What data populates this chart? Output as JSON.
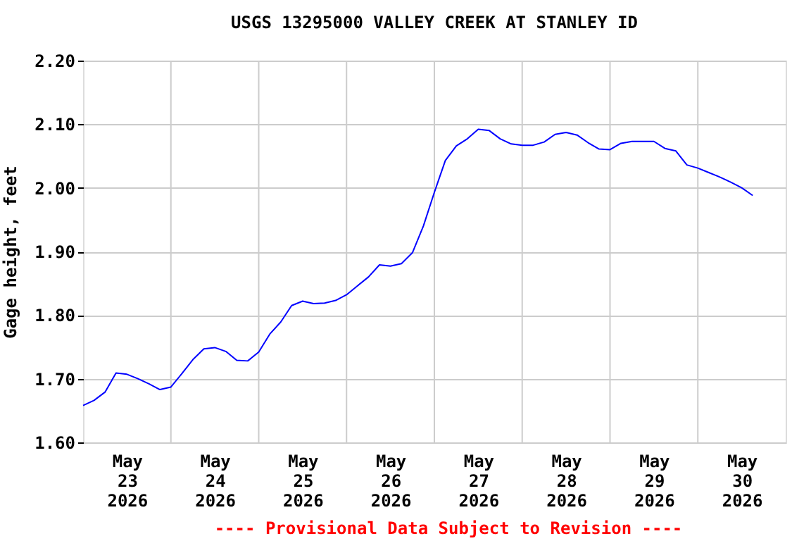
{
  "chart_data": {
    "type": "line",
    "title": "USGS 13295000 VALLEY CREEK AT STANLEY ID",
    "ylabel": "Gage height, feet",
    "annotations": [
      "---- Provisional Data Subject to Revision ----"
    ],
    "x": [
      "2026-05-23T00:00",
      "2026-05-23T03:00",
      "2026-05-23T06:00",
      "2026-05-23T09:00",
      "2026-05-23T12:00",
      "2026-05-23T15:00",
      "2026-05-23T18:00",
      "2026-05-23T21:00",
      "2026-05-24T00:00",
      "2026-05-24T03:00",
      "2026-05-24T06:00",
      "2026-05-24T09:00",
      "2026-05-24T12:00",
      "2026-05-24T15:00",
      "2026-05-24T18:00",
      "2026-05-24T21:00",
      "2026-05-25T00:00",
      "2026-05-25T03:00",
      "2026-05-25T06:00",
      "2026-05-25T09:00",
      "2026-05-25T12:00",
      "2026-05-25T15:00",
      "2026-05-25T18:00",
      "2026-05-25T21:00",
      "2026-05-26T00:00",
      "2026-05-26T03:00",
      "2026-05-26T06:00",
      "2026-05-26T09:00",
      "2026-05-26T12:00",
      "2026-05-26T15:00",
      "2026-05-26T18:00",
      "2026-05-26T21:00",
      "2026-05-27T00:00",
      "2026-05-27T03:00",
      "2026-05-27T06:00",
      "2026-05-27T09:00",
      "2026-05-27T12:00",
      "2026-05-27T15:00",
      "2026-05-27T18:00",
      "2026-05-27T21:00",
      "2026-05-28T00:00",
      "2026-05-28T03:00",
      "2026-05-28T06:00",
      "2026-05-28T09:00",
      "2026-05-28T12:00",
      "2026-05-28T15:00",
      "2026-05-28T18:00",
      "2026-05-28T21:00",
      "2026-05-29T00:00",
      "2026-05-29T03:00",
      "2026-05-29T06:00",
      "2026-05-29T09:00",
      "2026-05-29T12:00",
      "2026-05-29T15:00",
      "2026-05-29T18:00",
      "2026-05-29T21:00",
      "2026-05-30T00:00",
      "2026-05-30T03:00",
      "2026-05-30T06:00",
      "2026-05-30T09:00",
      "2026-05-30T12:00",
      "2026-05-30T15:00"
    ],
    "series": [
      {
        "color": "#0000ff",
        "values": [
          1.658,
          1.666,
          1.679,
          1.709,
          1.707,
          1.7,
          1.692,
          1.683,
          1.687,
          1.708,
          1.73,
          1.747,
          1.749,
          1.743,
          1.729,
          1.728,
          1.742,
          1.77,
          1.789,
          1.815,
          1.822,
          1.818,
          1.819,
          1.823,
          1.832,
          1.846,
          1.86,
          1.879,
          1.877,
          1.881,
          1.898,
          1.94,
          1.993,
          2.043,
          2.066,
          2.077,
          2.092,
          2.09,
          2.077,
          2.069,
          2.067,
          2.067,
          2.072,
          2.084,
          2.087,
          2.083,
          2.071,
          2.061,
          2.06,
          2.07,
          2.073,
          2.073,
          2.073,
          2.062,
          2.058,
          2.036,
          2.031,
          2.024,
          2.017,
          2.009,
          2.0,
          1.988
        ]
      }
    ],
    "xlim": [
      "2026-05-23T00:00",
      "2026-05-31T00:00"
    ],
    "xticks": [
      {
        "value": "2026-05-23T12:00",
        "label": "May\n23\n2026"
      },
      {
        "value": "2026-05-24T12:00",
        "label": "May\n24\n2026"
      },
      {
        "value": "2026-05-25T12:00",
        "label": "May\n25\n2026"
      },
      {
        "value": "2026-05-26T12:00",
        "label": "May\n26\n2026"
      },
      {
        "value": "2026-05-27T12:00",
        "label": "May\n27\n2026"
      },
      {
        "value": "2026-05-28T12:00",
        "label": "May\n28\n2026"
      },
      {
        "value": "2026-05-29T12:00",
        "label": "May\n29\n2026"
      },
      {
        "value": "2026-05-30T12:00",
        "label": "May\n30\n2026"
      },
      {
        "value": "2026-05-24T00:00",
        "label": null
      },
      {
        "value": "2026-05-25T00:00",
        "label": null
      },
      {
        "value": "2026-05-26T00:00",
        "label": null
      },
      {
        "value": "2026-05-27T00:00",
        "label": null
      },
      {
        "value": "2026-05-28T00:00",
        "label": null
      },
      {
        "value": "2026-05-29T00:00",
        "label": null
      },
      {
        "value": "2026-05-30T00:00",
        "label": null
      }
    ],
    "ylim": [
      1.6,
      2.2
    ],
    "yticks": [
      {
        "value": 1.6,
        "label": "1.60"
      },
      {
        "value": 1.7,
        "label": "1.70"
      },
      {
        "value": 1.8,
        "label": "1.80"
      },
      {
        "value": 1.9,
        "label": "1.90"
      },
      {
        "value": 2.0,
        "label": "2.00"
      },
      {
        "value": 2.1,
        "label": "2.10"
      },
      {
        "value": 2.2,
        "label": "2.20"
      }
    ],
    "grid": true,
    "marker": "none",
    "line_style": "solid"
  }
}
